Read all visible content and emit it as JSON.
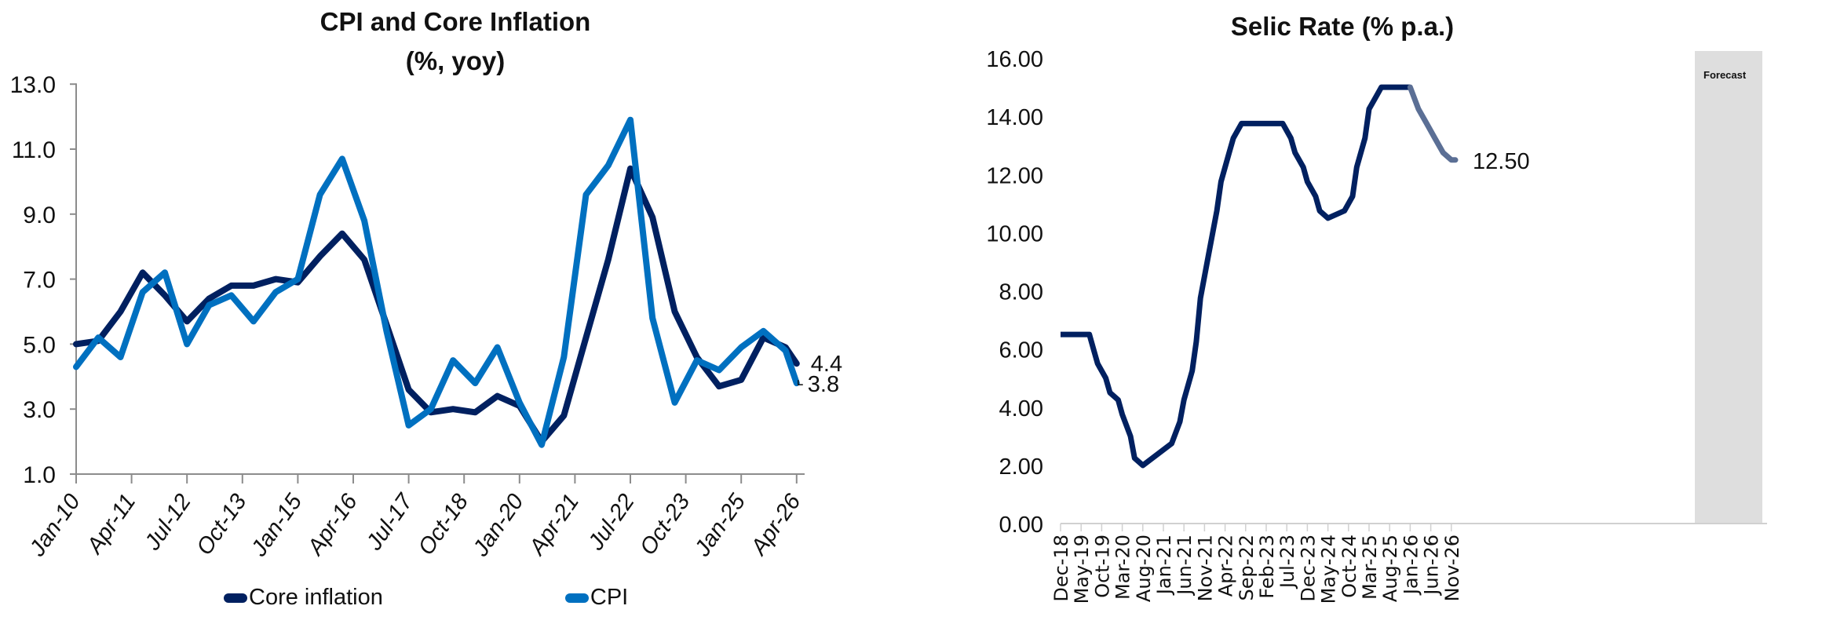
{
  "chart_data": [
    {
      "type": "line",
      "title": "CPI and Core Inflation",
      "subtitle": "(%, yoy)",
      "xlabel": "",
      "ylabel": "",
      "ylim": [
        1.0,
        13.0
      ],
      "yticks": [
        "13.0",
        "11.0",
        "9.0",
        "7.0",
        "5.0",
        "3.0",
        "1.0"
      ],
      "xticks": [
        "Jan-10",
        "Apr-11",
        "Jul-12",
        "Oct-13",
        "Jan-15",
        "Apr-16",
        "Jul-17",
        "Oct-18",
        "Jan-20",
        "Apr-21",
        "Jul-22",
        "Oct-23",
        "Jan-25",
        "Apr-26"
      ],
      "grid": false,
      "legend_position": "bottom",
      "x": [
        "Jan-10",
        "Jul-10",
        "Jan-11",
        "Jul-11",
        "Jan-12",
        "Jul-12",
        "Jan-13",
        "Jul-13",
        "Jan-14",
        "Jul-14",
        "Jan-15",
        "Jul-15",
        "Jan-16",
        "Jul-16",
        "Jan-17",
        "Jul-17",
        "Jan-18",
        "Jul-18",
        "Jan-19",
        "Jul-19",
        "Jan-20",
        "Jul-20",
        "Jan-21",
        "Jul-21",
        "Jan-22",
        "Jul-22",
        "Jan-23",
        "Jul-23",
        "Jan-24",
        "Jul-24",
        "Jan-25",
        "Jul-25",
        "Jan-26",
        "Apr-26"
      ],
      "series": [
        {
          "name": "Core inflation",
          "color": "#002060",
          "values": [
            5.0,
            5.1,
            6.0,
            7.2,
            6.5,
            5.7,
            6.4,
            6.8,
            6.8,
            7.0,
            6.9,
            7.7,
            8.4,
            7.6,
            5.6,
            3.6,
            2.9,
            3.0,
            2.9,
            3.4,
            3.1,
            2.0,
            2.8,
            5.2,
            7.6,
            10.4,
            8.9,
            6.0,
            4.6,
            3.7,
            3.9,
            5.2,
            4.9,
            4.4
          ]
        },
        {
          "name": "CPI",
          "color": "#0070C0",
          "values": [
            4.3,
            5.2,
            4.6,
            6.6,
            7.2,
            5.0,
            6.2,
            6.5,
            5.7,
            6.6,
            7.0,
            9.6,
            10.7,
            8.8,
            5.4,
            2.5,
            3.0,
            4.5,
            3.8,
            4.9,
            3.2,
            1.9,
            4.6,
            9.6,
            10.5,
            11.9,
            5.8,
            3.2,
            4.5,
            4.2,
            4.9,
            5.4,
            4.8,
            3.8
          ]
        }
      ],
      "end_labels": {
        "core_inflation": "4.4",
        "cpi": "3.8"
      }
    },
    {
      "type": "line",
      "title": "Selic Rate (% p.a.)",
      "xlabel": "",
      "ylabel": "",
      "ylim": [
        0,
        16
      ],
      "yticks": [
        "16.00",
        "14.00",
        "12.00",
        "10.00",
        "8.00",
        "6.00",
        "4.00",
        "2.00",
        "0.00"
      ],
      "xticks": [
        "Dec-18",
        "May-19",
        "Oct-19",
        "Mar-20",
        "Aug-20",
        "Jan-21",
        "Jun-21",
        "Nov-21",
        "Apr-22",
        "Sep-22",
        "Feb-23",
        "Jul-23",
        "Dec-23",
        "May-24",
        "Oct-24",
        "Mar-25",
        "Aug-25",
        "Jan-26",
        "Jun-26",
        "Nov-26"
      ],
      "grid": false,
      "annotation": "Forecast",
      "forecast_start": "Feb-26",
      "x": [
        "Dec-18",
        "Jul-19",
        "Aug-19",
        "Sep-19",
        "Nov-19",
        "Dec-19",
        "Feb-20",
        "Mar-20",
        "May-20",
        "Jun-20",
        "Aug-20",
        "Mar-21",
        "May-21",
        "Jun-21",
        "Aug-21",
        "Sep-21",
        "Oct-21",
        "Dec-21",
        "Feb-22",
        "Mar-22",
        "May-22",
        "Jun-22",
        "Aug-22",
        "Jun-23",
        "Aug-23",
        "Sep-23",
        "Nov-23",
        "Dec-23",
        "Feb-24",
        "Mar-24",
        "May-24",
        "Sep-24",
        "Nov-24",
        "Dec-24",
        "Feb-25",
        "Mar-25",
        "May-25",
        "Jun-25",
        "Jan-26",
        "Mar-26",
        "May-26",
        "Jul-26",
        "Sep-26",
        "Nov-26",
        "Dec-26"
      ],
      "series": [
        {
          "name": "Selic",
          "color": "#002060",
          "forecast_color": "#5B6F95",
          "values": [
            6.5,
            6.5,
            6.0,
            5.5,
            5.0,
            4.5,
            4.25,
            3.75,
            3.0,
            2.25,
            2.0,
            2.75,
            3.5,
            4.25,
            5.25,
            6.25,
            7.75,
            9.25,
            10.75,
            11.75,
            12.75,
            13.25,
            13.75,
            13.75,
            13.25,
            12.75,
            12.25,
            11.75,
            11.25,
            10.75,
            10.5,
            10.75,
            11.25,
            12.25,
            13.25,
            14.25,
            14.75,
            15.0,
            15.0,
            14.25,
            13.75,
            13.25,
            12.75,
            12.5,
            12.5
          ]
        }
      ],
      "end_label": "12.50"
    }
  ],
  "left": {
    "title_line1": "CPI and Core Inflation",
    "title_line2": "(%, yoy)",
    "legend": [
      {
        "label": "Core inflation",
        "color": "#002060"
      },
      {
        "label": "CPI",
        "color": "#0070C0"
      }
    ],
    "end_labels": {
      "core": "4.4",
      "cpi": "3.8"
    }
  },
  "right": {
    "title": "Selic Rate (% p.a.)",
    "forecast_label": "Forecast",
    "end_label": "12.50"
  }
}
